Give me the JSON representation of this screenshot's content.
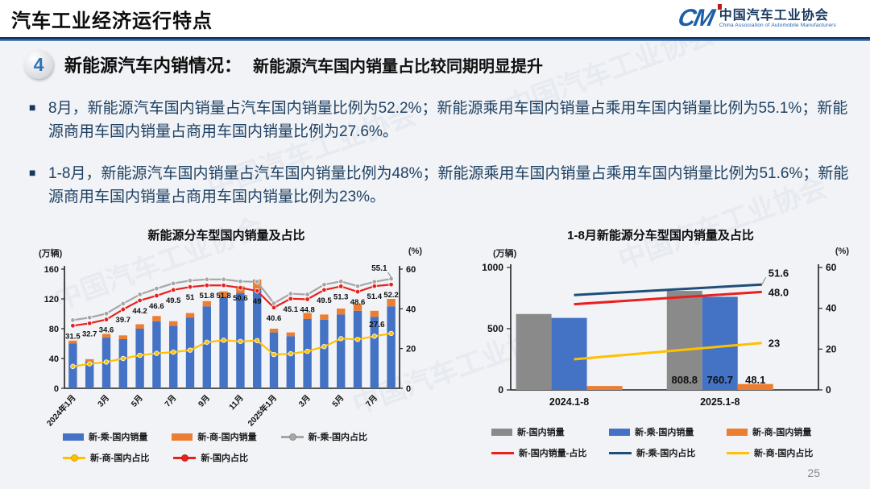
{
  "header": {
    "title": "汽车工业经济运行特点",
    "logo": {
      "abbr": "CM",
      "org_cn": "中国汽车工业协会",
      "org_en": "China Association of Automobile Manufacturers"
    }
  },
  "section": {
    "number": "4",
    "title": "新能源汽车内销情况：",
    "subtitle": "新能源汽车国内销量占比较同期明显提升"
  },
  "bullets": [
    "8月，新能源汽车国内销量占汽车国内销量比例为52.2%；新能源乘用车国内销量占乘用车国内销量比例为55.1%；新能源商用车国内销量占商用车国内销量比例为27.6%。",
    "1-8月，新能源汽车国内销量占汽车国内销量比例为48%；新能源乘用车国内销量占乘用车国内销量比例为51.6%；新能源商用车国内销量占商用车国内销量比例为23%。"
  ],
  "watermark": "中国汽车工业协会",
  "page_number": "25",
  "colors": {
    "blue_bar": "#4472C4",
    "orange_bar": "#ED7D31",
    "gray_bar": "#8A8A8A",
    "gray_line": "#A6A6A6",
    "yellow_line": "#FFC000",
    "red_line": "#E8201E",
    "navy_line": "#1F4E79",
    "header_rule": "#17375E"
  },
  "chart_data": [
    {
      "type": "bar",
      "subtype": "stacked-bars-with-lines",
      "title": "新能源分车型国内销量及占比",
      "left_axis_label": "(万辆)",
      "right_axis_label": "(%)",
      "left_ticks": [
        0,
        40,
        80,
        120,
        160
      ],
      "right_ticks": [
        0,
        20,
        40,
        60
      ],
      "left_axis_max": 160,
      "right_axis_max": 60,
      "grid": "off",
      "legend_position": "bottom",
      "categories": [
        "2024年1月",
        "2月",
        "3月",
        "4月",
        "5月",
        "6月",
        "7月",
        "8月",
        "9月",
        "10月",
        "11月",
        "12月",
        "2025年1月",
        "2月",
        "3月",
        "4月",
        "5月",
        "6月",
        "7月",
        "8月"
      ],
      "x_tick_labels_shown": [
        "2024年1月",
        "3月",
        "5月",
        "7月",
        "9月",
        "11月",
        "2025年1月",
        "3月",
        "5月",
        "7月"
      ],
      "bar_series": [
        {
          "name": "新-乘-国内销量",
          "color": "#4472C4",
          "axis": "left",
          "values_estimated": true,
          "values": [
            60,
            36,
            68,
            66,
            80,
            90,
            84,
            95,
            110,
            122,
            128,
            133,
            75,
            70,
            93,
            92,
            99,
            104,
            96,
            110
          ]
        },
        {
          "name": "新-商-国内销量",
          "color": "#ED7D31",
          "axis": "left",
          "stacked_on_previous": true,
          "values_estimated": true,
          "values": [
            4,
            3,
            5,
            5,
            6,
            7,
            6,
            6,
            7,
            8,
            9,
            13,
            5,
            5,
            8,
            7,
            8,
            9,
            8,
            10
          ]
        }
      ],
      "line_series": [
        {
          "name": "新-乘-国内占比",
          "color": "#A6A6A6",
          "axis": "right",
          "marker": "circle",
          "values_estimated": true,
          "values": [
            34.3,
            35.6,
            37.6,
            42.6,
            47.2,
            50.2,
            52.8,
            54.2,
            54.8,
            54.8,
            53.8,
            53.6,
            42.8,
            47.6,
            47.2,
            52.2,
            53.8,
            51.4,
            53.6,
            55.1
          ],
          "end_label": "55.1"
        },
        {
          "name": "新-商-国内占比",
          "color": "#FFC000",
          "axis": "right",
          "marker": "circle",
          "values_estimated": true,
          "values": [
            11,
            12.3,
            13.2,
            15,
            16.6,
            17.6,
            18.2,
            19.2,
            23.2,
            24.2,
            23.6,
            24,
            17,
            17.4,
            18.6,
            21,
            25,
            24.6,
            26.2,
            27.6
          ],
          "end_label": "27.6"
        },
        {
          "name": "新-国内占比",
          "color": "#E8201E",
          "axis": "right",
          "marker": "circle",
          "values": [
            31.5,
            32.7,
            34.6,
            39.7,
            44.2,
            46.6,
            49.5,
            51,
            51.8,
            51.8,
            50.6,
            49,
            40.6,
            45.1,
            44.8,
            49.5,
            51.3,
            48.6,
            51.4,
            52.2
          ],
          "point_labels": [
            "31.5",
            "32.7",
            "34.6",
            "39.7",
            "44.2",
            "46.6",
            "49.5",
            "51",
            "51.8",
            "51.8",
            "50.6",
            "49",
            "40.6",
            "45.1",
            "44.8",
            "49.5",
            "51.3",
            "48.6",
            "51.4",
            "52.2"
          ]
        }
      ]
    },
    {
      "type": "bar",
      "subtype": "grouped-bars-with-lines",
      "title": "1-8月新能源分车型国内销量及占比",
      "left_axis_label": "(万辆)",
      "right_axis_label": "(%)",
      "left_ticks": [
        0,
        500,
        1000
      ],
      "right_ticks": [
        0,
        20,
        40,
        60
      ],
      "left_axis_max": 1000,
      "right_axis_max": 60,
      "grid": "off",
      "legend_position": "bottom",
      "categories": [
        "2024.1-8",
        "2025.1-8"
      ],
      "bar_series": [
        {
          "name": "新-国内销量",
          "color": "#8A8A8A",
          "axis": "left",
          "values": [
            620,
            808.8
          ],
          "labels": [
            "",
            "808.8"
          ],
          "first_value_estimated": true
        },
        {
          "name": "新-乘-国内销量",
          "color": "#4472C4",
          "axis": "left",
          "values": [
            588,
            760.7
          ],
          "labels": [
            "",
            "760.7"
          ],
          "first_value_estimated": true
        },
        {
          "name": "新-商-国内销量",
          "color": "#ED7D31",
          "axis": "left",
          "values": [
            32,
            48.1
          ],
          "labels": [
            "",
            "48.1"
          ],
          "first_value_estimated": true
        }
      ],
      "line_series": [
        {
          "name": "新-国内销量-占比",
          "color": "#E8201E",
          "axis": "right",
          "values": [
            42,
            48.0
          ],
          "end_label": "48.0",
          "first_value_estimated": true
        },
        {
          "name": "新-乘-国内占比",
          "color": "#1F4E79",
          "axis": "right",
          "values": [
            46.5,
            51.6
          ],
          "end_label": "51.6",
          "first_value_estimated": true
        },
        {
          "name": "新-商-国内占比",
          "color": "#FFC000",
          "axis": "right",
          "values": [
            15,
            23
          ],
          "end_label": "23",
          "first_value_estimated": true
        }
      ]
    }
  ]
}
